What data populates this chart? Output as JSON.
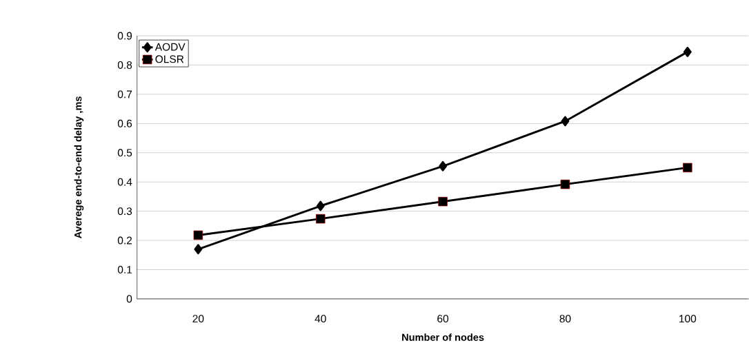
{
  "chart_data": {
    "type": "line",
    "xlabel": "Number of nodes",
    "ylabel": "Averege end-to-end delay ,ms",
    "categories": [
      "20",
      "40",
      "60",
      "80",
      "100"
    ],
    "series": [
      {
        "name": "AODV",
        "color": "#000000",
        "marker": "diamond",
        "values": [
          0.17,
          0.318,
          0.454,
          0.608,
          0.845
        ]
      },
      {
        "name": "OLSR",
        "color": "#000000",
        "marker": "square",
        "values": [
          0.218,
          0.274,
          0.333,
          0.392,
          0.449
        ]
      }
    ],
    "ylim": [
      0,
      0.9
    ],
    "yticks": [
      0,
      0.1,
      0.2,
      0.3,
      0.4,
      0.5,
      0.6,
      0.7,
      0.8,
      0.9
    ],
    "grid": "y",
    "legend": "top left",
    "line_style": "solid"
  }
}
